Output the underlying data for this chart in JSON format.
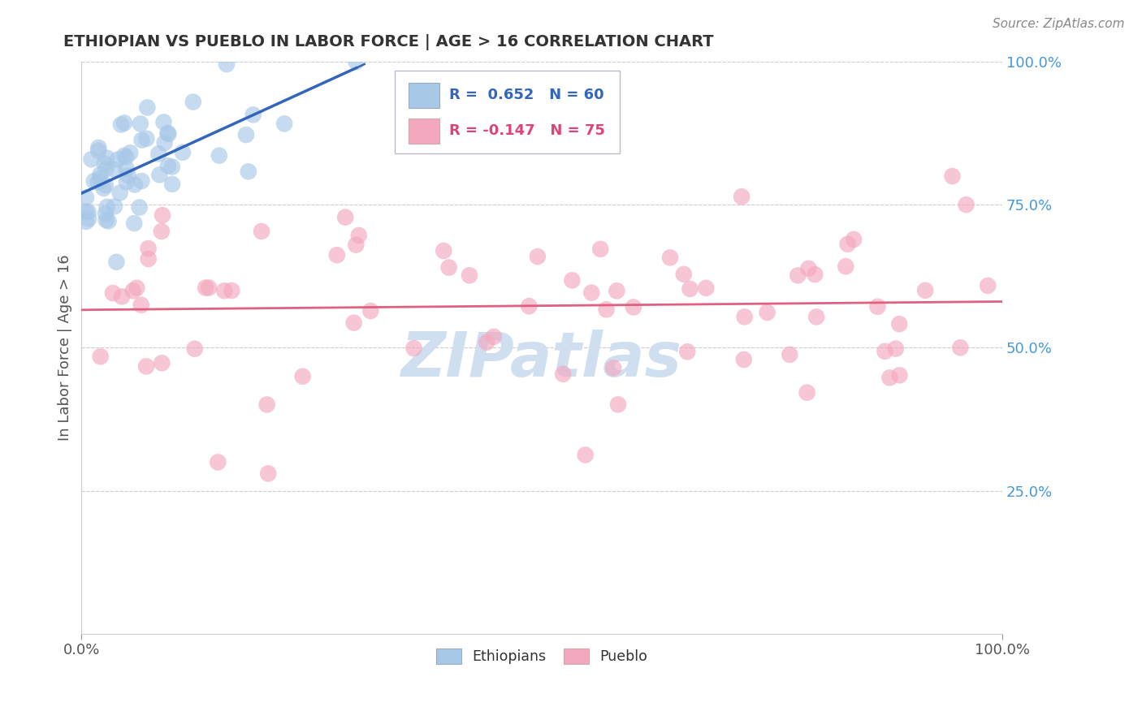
{
  "title": "ETHIOPIAN VS PUEBLO IN LABOR FORCE | AGE > 16 CORRELATION CHART",
  "source_text": "Source: ZipAtlas.com",
  "ylabel": "In Labor Force | Age > 16",
  "legend_label1": "Ethiopians",
  "legend_label2": "Pueblo",
  "r1": 0.652,
  "n1": 60,
  "r2": -0.147,
  "n2": 75,
  "blue_color": "#A8C8E8",
  "blue_line_color": "#3366BB",
  "pink_color": "#F4A8BE",
  "pink_line_color": "#E06080",
  "watermark": "ZIPatlas",
  "watermark_color": "#D0DFF0",
  "background_color": "#FFFFFF",
  "grid_color": "#CCCCCC",
  "right_tick_color": "#4499DD",
  "title_color": "#333333",
  "source_color": "#888888",
  "ylabel_color": "#555555",
  "xtick_color": "#555555"
}
